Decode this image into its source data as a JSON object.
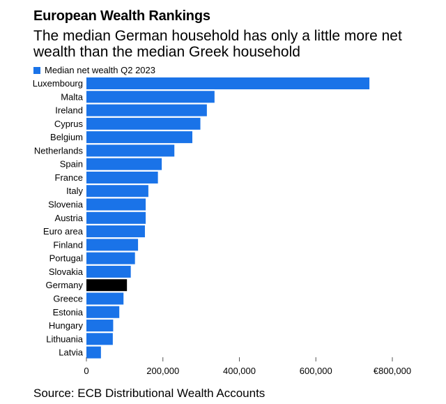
{
  "header": {
    "title": "European Wealth Rankings",
    "subtitle": "The median German household has only a little more net wealth than the median Greek household"
  },
  "legend": {
    "label": "Median net wealth Q2 2023"
  },
  "footer": {
    "source": "Source: ECB Distributional Wealth Accounts"
  },
  "colors": {
    "bar": "#1a73e8",
    "highlight": "#000000"
  },
  "chart_data": {
    "type": "bar",
    "orientation": "horizontal",
    "categories": [
      "Luxembourg",
      "Malta",
      "Ireland",
      "Cyprus",
      "Belgium",
      "Netherlands",
      "Spain",
      "France",
      "Italy",
      "Slovenia",
      "Austria",
      "Euro area",
      "Finland",
      "Portugal",
      "Slovakia",
      "Germany",
      "Greece",
      "Estonia",
      "Hungary",
      "Lithuania",
      "Latvia"
    ],
    "values": [
      740000,
      335000,
      315000,
      298000,
      277000,
      230000,
      197000,
      187000,
      162000,
      155000,
      155000,
      153000,
      135000,
      127000,
      116000,
      106000,
      97000,
      86000,
      70000,
      69000,
      38000
    ],
    "highlight": "Germany",
    "series": [
      {
        "name": "Median net wealth Q2 2023"
      }
    ],
    "xticks": [
      "0",
      "200,000",
      "400,000",
      "600,000",
      "€800,000"
    ],
    "xtick_values": [
      0,
      200000,
      400000,
      600000,
      800000
    ],
    "xlim": [
      0,
      800000
    ],
    "grid": false,
    "legend_position": "top-left"
  }
}
